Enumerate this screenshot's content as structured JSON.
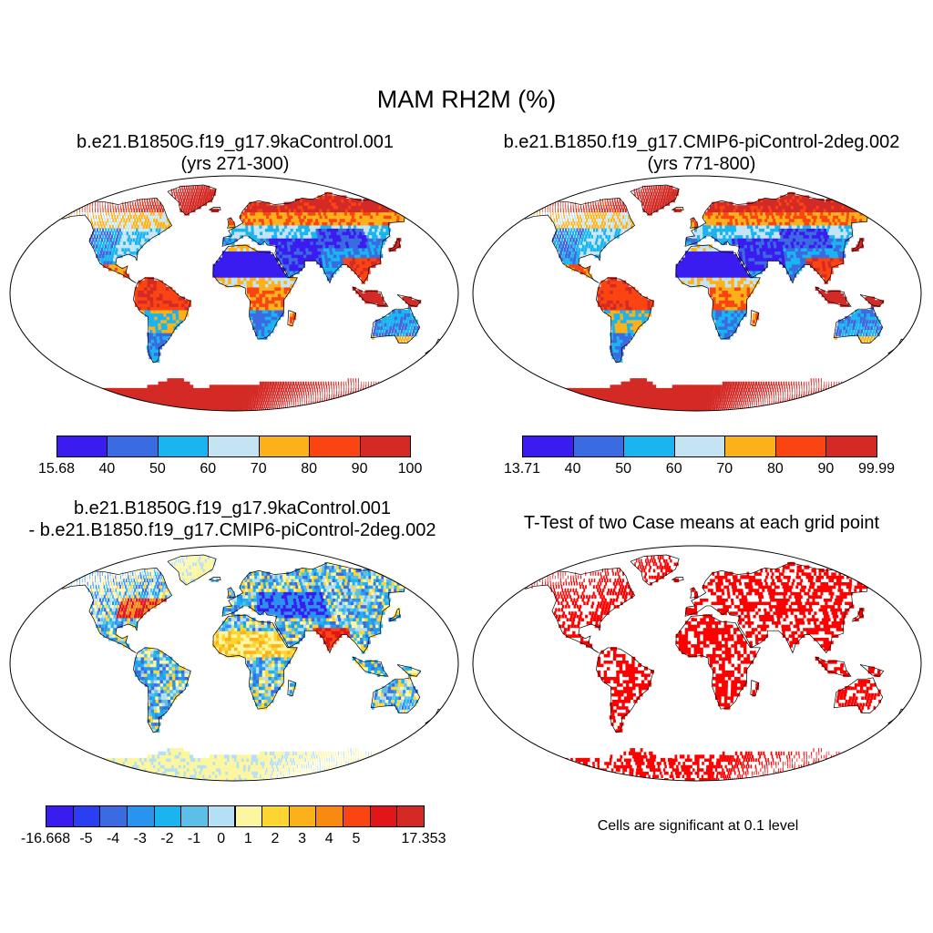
{
  "figure": {
    "title": "MAM RH2M (%)",
    "panels": [
      {
        "id": "case1",
        "title_line1": "b.e21.B1850G.f19_g17.9kaControl.001",
        "title_line2": "(yrs 271-300)"
      },
      {
        "id": "case2",
        "title_line1": "b.e21.B1850.f19_g17.CMIP6-piControl-2deg.002",
        "title_line2": "(yrs 771-800)"
      },
      {
        "id": "diff",
        "title_line1": "b.e21.B1850G.f19_g17.9kaControl.001",
        "title_line2": "- b.e21.B1850.f19_g17.CMIP6-piControl-2deg.002"
      },
      {
        "id": "ttest",
        "title_line1": "T-Test of two Case means at each grid point"
      }
    ],
    "significance_note": "Cells are significant at 0.1 level"
  },
  "colorbars": {
    "case1": {
      "labels": [
        "15.68",
        "40",
        "50",
        "60",
        "70",
        "80",
        "90",
        "100"
      ],
      "colors": [
        "#3a1cf0",
        "#3b6be0",
        "#1ab5f0",
        "#c4e4f4",
        "#fbb11a",
        "#fa4513",
        "#d42a26"
      ]
    },
    "case2": {
      "labels": [
        "13.71",
        "40",
        "50",
        "60",
        "70",
        "80",
        "90",
        "99.99"
      ],
      "colors": [
        "#3a1cf0",
        "#3b6be0",
        "#1ab5f0",
        "#c4e4f4",
        "#fbb11a",
        "#fa4513",
        "#d42a26"
      ]
    },
    "diff": {
      "labels": [
        "-16.668",
        "-5",
        "-4",
        "-3",
        "-2",
        "-1",
        "0",
        "1",
        "2",
        "3",
        "4",
        "5",
        "17.353"
      ],
      "colors": [
        "#3a1cf0",
        "#2a3ff2",
        "#3b6be0",
        "#2a93ee",
        "#1ab5f0",
        "#5bbfe8",
        "#b4dff4",
        "#fdf6a0",
        "#fdd531",
        "#fbb11a",
        "#f98a10",
        "#fa4513",
        "#e0161b",
        "#d42a26"
      ]
    }
  }
}
